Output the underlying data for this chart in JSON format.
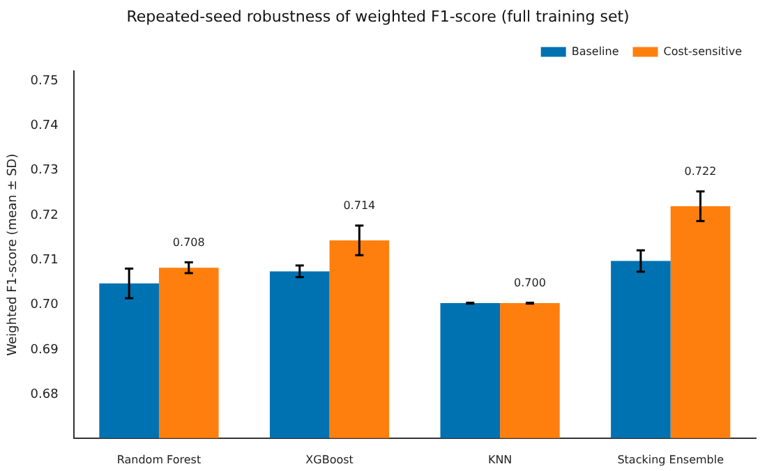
{
  "chart_data": {
    "type": "bar",
    "title": "Repeated-seed robustness of weighted F1-score (full training set)",
    "ylabel": "Weighted F1-score (mean ± SD)",
    "categories": [
      "Random Forest",
      "XGBoost",
      "KNN",
      "Stacking Ensemble"
    ],
    "series": [
      {
        "name": "Baseline",
        "color": "#0072b2",
        "values": [
          0.7048,
          0.7075,
          0.7004,
          0.7098
        ],
        "errors": [
          0.0033,
          0.0013,
          0.0001,
          0.0024
        ]
      },
      {
        "name": "Cost-sensitive",
        "color": "#ff7f0e",
        "values": [
          0.7083,
          0.7144,
          0.7004,
          0.722
        ],
        "errors": [
          0.0012,
          0.0033,
          0.0001,
          0.0033
        ],
        "value_labels": [
          "0.708",
          "0.714",
          "0.700",
          "0.722"
        ]
      }
    ],
    "ylim": [
      0.6703,
      0.7521
    ],
    "yticks": [
      {
        "value": 0.68,
        "label": "0.68"
      },
      {
        "value": 0.69,
        "label": "0.69"
      },
      {
        "value": 0.7,
        "label": "0.70"
      },
      {
        "value": 0.71,
        "label": "0.71"
      },
      {
        "value": 0.72,
        "label": "0.72"
      },
      {
        "value": 0.73,
        "label": "0.73"
      },
      {
        "value": 0.74,
        "label": "0.74"
      },
      {
        "value": 0.75,
        "label": "0.75"
      }
    ],
    "grid": false,
    "legend": "top right"
  }
}
